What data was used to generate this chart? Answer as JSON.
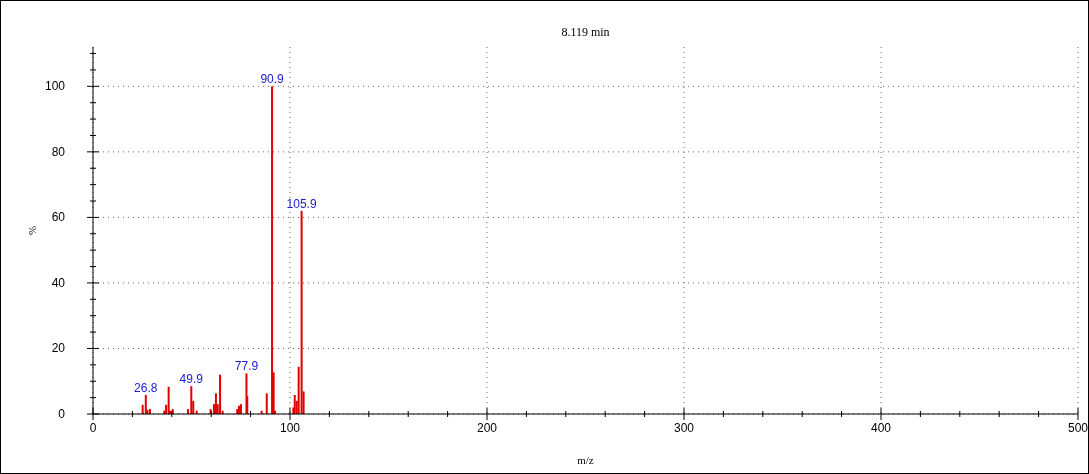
{
  "chart_data": {
    "type": "bar",
    "title": "8.119 min",
    "xlabel": "m/z",
    "ylabel": "%",
    "x": [
      25.2,
      26.8,
      27.6,
      28.9,
      36.2,
      37.1,
      38.4,
      39.2,
      40.5,
      48.2,
      49.9,
      50.9,
      52.6,
      59.7,
      61.4,
      62.4,
      63.3,
      64.5,
      65.8,
      73.2,
      74.1,
      75.1,
      77.9,
      78.3,
      85.6,
      88.2,
      90.9,
      91.7,
      92.4,
      101.7,
      102.4,
      103.4,
      104.4,
      105.9,
      106.9
    ],
    "values": [
      2.8,
      5.8,
      1.3,
      1.5,
      1,
      2.8,
      8.3,
      1,
      1.5,
      1.5,
      8.5,
      4,
      1,
      1.5,
      3,
      6.3,
      3,
      12,
      1,
      1.5,
      2.5,
      3,
      12.4,
      5.4,
      1,
      6.3,
      100,
      12.7,
      1,
      2,
      5.8,
      4,
      14.4,
      62,
      6.9
    ],
    "color": "#e00000",
    "annotations": [
      {
        "text": "26.8",
        "x": 26.8,
        "y": 5.8
      },
      {
        "text": "49.9",
        "x": 49.9,
        "y": 8.5
      },
      {
        "text": "77.9",
        "x": 77.9,
        "y": 12.4
      },
      {
        "text": "90.9",
        "x": 90.9,
        "y": 100
      },
      {
        "text": "105.9",
        "x": 105.9,
        "y": 62
      }
    ],
    "xlim": [
      0,
      500
    ],
    "xticks": [
      0,
      {
        "value": 20,
        "label": null
      },
      {
        "value": 40,
        "label": null
      },
      {
        "value": 60,
        "label": null
      },
      {
        "value": 80,
        "label": null
      },
      100,
      {
        "value": 120,
        "label": null
      },
      {
        "value": 140,
        "label": null
      },
      {
        "value": 160,
        "label": null
      },
      {
        "value": 180,
        "label": null
      },
      200,
      {
        "value": 220,
        "label": null
      },
      {
        "value": 240,
        "label": null
      },
      {
        "value": 260,
        "label": null
      },
      {
        "value": 280,
        "label": null
      },
      300,
      {
        "value": 320,
        "label": null
      },
      {
        "value": 340,
        "label": null
      },
      {
        "value": 360,
        "label": null
      },
      {
        "value": 380,
        "label": null
      },
      400,
      {
        "value": 420,
        "label": null
      },
      {
        "value": 440,
        "label": null
      },
      {
        "value": 460,
        "label": null
      },
      {
        "value": 480,
        "label": null
      },
      500
    ],
    "ylim": [
      0,
      112
    ],
    "yticks": [
      0,
      {
        "value": 5,
        "label": null
      },
      {
        "value": 10,
        "label": null
      },
      {
        "value": 15,
        "label": null
      },
      20,
      {
        "value": 25,
        "label": null
      },
      {
        "value": 30,
        "label": null
      },
      {
        "value": 35,
        "label": null
      },
      40,
      {
        "value": 45,
        "label": null
      },
      {
        "value": 50,
        "label": null
      },
      {
        "value": 55,
        "label": null
      },
      60,
      {
        "value": 65,
        "label": null
      },
      {
        "value": 70,
        "label": null
      },
      {
        "value": 75,
        "label": null
      },
      80,
      {
        "value": 85,
        "label": null
      },
      {
        "value": 90,
        "label": null
      },
      {
        "value": 95,
        "label": null
      },
      100,
      {
        "value": 105,
        "label": null
      },
      {
        "value": 110,
        "label": null
      }
    ],
    "grid": true
  }
}
